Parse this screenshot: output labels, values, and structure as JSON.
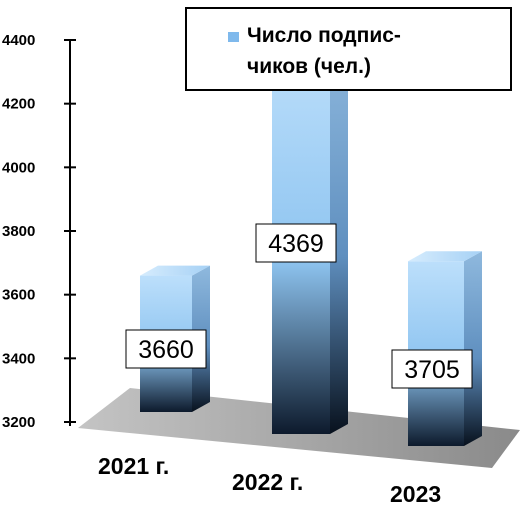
{
  "chart_data": {
    "type": "bar",
    "style": "3d-column",
    "categories": [
      "2021 г.",
      "2022 г.",
      "2023"
    ],
    "series": [
      {
        "name": "Число подписчиков (чел.)",
        "values": [
          3660,
          4369,
          3705
        ]
      }
    ],
    "data_labels": [
      "3660",
      "4369",
      "3705"
    ],
    "y_ticks": [
      "3200",
      "3400",
      "3600",
      "3800",
      "4000",
      "4200",
      "4400"
    ],
    "ylim": [
      3200,
      4400
    ],
    "legend": {
      "position": "top-right",
      "lines": [
        "Число подпис-",
        "чиков (чел.)"
      ]
    },
    "grid": false,
    "colors": {
      "bar_top": "#b9dcfa",
      "bar_front": "#8ec4f0",
      "bar_dark": "#0d1a2c",
      "floor": "#9a9a9a"
    }
  }
}
